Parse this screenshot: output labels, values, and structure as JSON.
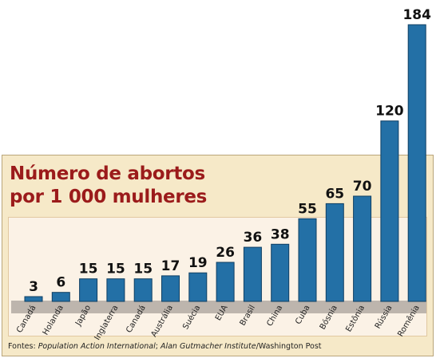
{
  "chart_data": {
    "type": "bar",
    "title_lines": [
      "Número de abortos",
      "por 1 000 mulheres"
    ],
    "categories": [
      "Canadá",
      "Holanda",
      "Japão",
      "Inglaterra",
      "Canadá",
      "Austrália",
      "Suécia",
      "EUA",
      "Brasil",
      "China",
      "Cuba",
      "Bósnia",
      "Estônia",
      "Rússia",
      "Romênia"
    ],
    "values": [
      3,
      6,
      15,
      15,
      15,
      17,
      19,
      26,
      36,
      38,
      55,
      65,
      70,
      120,
      184
    ],
    "ylim": [
      0,
      184
    ],
    "bar_color": "#2370a6",
    "grid": false,
    "legend": "none"
  },
  "source": {
    "prefix": "Fontes: ",
    "source_1": "Population Action International",
    "separator": "; ",
    "source_2": "Alan Gutmacher Institute",
    "suffix": "/Washington Post"
  },
  "colors": {
    "title": "#9b1b1b",
    "frame_background": "#f6e9c8",
    "plot_background": "#fbf2e6",
    "baseline_band": "#bdb5ad"
  }
}
